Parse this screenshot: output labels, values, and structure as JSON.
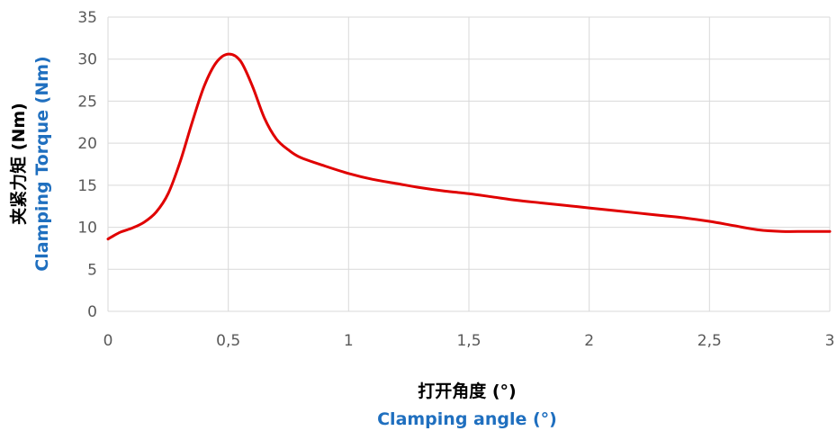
{
  "colors": {
    "line": "#e00000",
    "grid": "#d9d9d9",
    "tick_text": "#595959",
    "title_cn": "#000000",
    "title_en": "#1f6fbf"
  },
  "chart_data": {
    "type": "line",
    "xlabel_cn": "打开角度 (°)",
    "xlabel_en": "Clamping angle (°)",
    "ylabel_cn": "夹紧力矩 (Nm)",
    "ylabel_en": "Clamping Torque (Nm)",
    "xlim": [
      0,
      3
    ],
    "ylim": [
      0,
      35
    ],
    "xticks": [
      {
        "value": 0,
        "label": "0"
      },
      {
        "value": 0.5,
        "label": "0,5"
      },
      {
        "value": 1,
        "label": "1"
      },
      {
        "value": 1.5,
        "label": "1,5"
      },
      {
        "value": 2,
        "label": "2"
      },
      {
        "value": 2.5,
        "label": "2,5"
      },
      {
        "value": 3,
        "label": "3"
      }
    ],
    "yticks": [
      {
        "value": 0,
        "label": "0"
      },
      {
        "value": 5,
        "label": "5"
      },
      {
        "value": 10,
        "label": "10"
      },
      {
        "value": 15,
        "label": "15"
      },
      {
        "value": 20,
        "label": "20"
      },
      {
        "value": 25,
        "label": "25"
      },
      {
        "value": 30,
        "label": "30"
      },
      {
        "value": 35,
        "label": "35"
      }
    ],
    "grid": true,
    "legend": "none",
    "series": [
      {
        "x": [
          0,
          0.05,
          0.1,
          0.15,
          0.2,
          0.25,
          0.3,
          0.35,
          0.4,
          0.45,
          0.5,
          0.55,
          0.6,
          0.65,
          0.7,
          0.75,
          0.8,
          0.9,
          1.0,
          1.1,
          1.2,
          1.3,
          1.4,
          1.5,
          1.6,
          1.7,
          1.8,
          1.9,
          2.0,
          2.1,
          2.2,
          2.3,
          2.4,
          2.5,
          2.6,
          2.7,
          2.8,
          2.9,
          3.0
        ],
        "y": [
          8.6,
          9.4,
          9.9,
          10.6,
          11.8,
          14.0,
          17.8,
          22.5,
          26.8,
          29.6,
          30.6,
          29.8,
          26.8,
          23.0,
          20.5,
          19.2,
          18.3,
          17.3,
          16.4,
          15.7,
          15.2,
          14.7,
          14.3,
          14.0,
          13.6,
          13.2,
          12.9,
          12.6,
          12.3,
          12.0,
          11.7,
          11.4,
          11.1,
          10.7,
          10.2,
          9.7,
          9.5,
          9.5,
          9.5
        ]
      }
    ]
  }
}
